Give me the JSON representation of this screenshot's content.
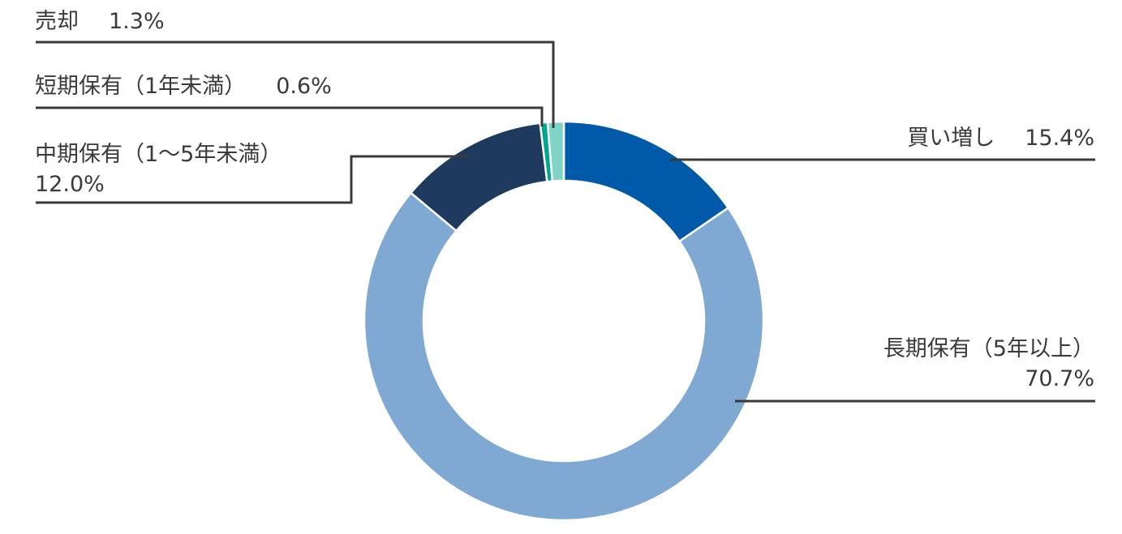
{
  "chart_data": {
    "type": "pie",
    "subtype": "donut",
    "title": "",
    "unit": "%",
    "direction": "clockwise",
    "start_angle_deg": 0,
    "legend_position": "callout-labels",
    "text_color": "#3a3a3a",
    "callout_line_color": "#3a3a3a",
    "separator_color": "#ffffff",
    "segments": [
      {
        "key": "buy-more",
        "label": "買い増し",
        "value": 15.4,
        "value_label": "15.4%",
        "color": "#0059a9"
      },
      {
        "key": "long-term-hold",
        "label": "長期保有（5年以上）",
        "value": 70.7,
        "value_label": "70.7%",
        "color": "#7fa9d3"
      },
      {
        "key": "mid-term-hold",
        "label": "中期保有（1〜5年未満）",
        "value": 12.0,
        "value_label": "12.0%",
        "color": "#1f3a5f"
      },
      {
        "key": "short-term-hold",
        "label": "短期保有（1年未満）",
        "value": 0.6,
        "value_label": "0.6%",
        "color": "#00a78e"
      },
      {
        "key": "sell",
        "label": "売却",
        "value": 1.3,
        "value_label": "1.3%",
        "color": "#7fd4c6"
      }
    ]
  }
}
